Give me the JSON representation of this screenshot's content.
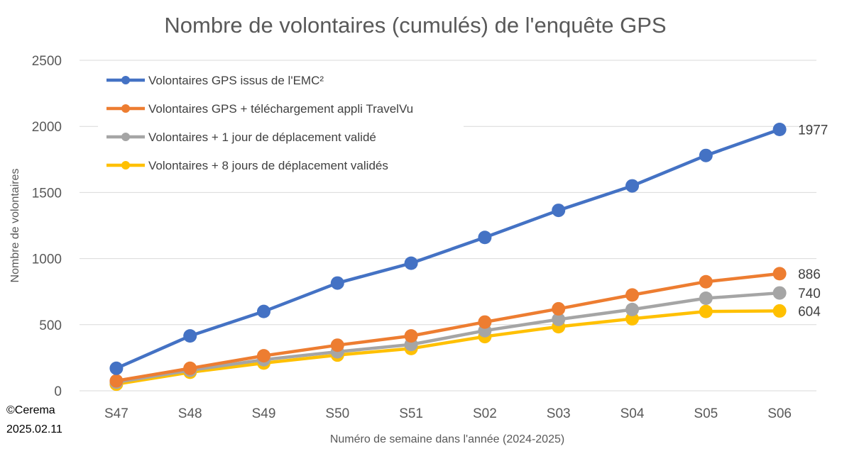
{
  "chart_data": {
    "type": "line",
    "title": "Nombre de volontaires (cumulés) de l'enquête GPS",
    "xlabel": "Numéro de semaine dans l'année (2024-2025)",
    "ylabel": "Nombre de volontaires",
    "categories": [
      "S47",
      "S48",
      "S49",
      "S50",
      "S51",
      "S02",
      "S03",
      "S04",
      "S05",
      "S06"
    ],
    "ylim": [
      0,
      2500
    ],
    "yticks": [
      0,
      500,
      1000,
      1500,
      2000,
      2500
    ],
    "grid": "horizontal",
    "legend_position": "top-left",
    "series": [
      {
        "name": "Volontaires GPS issus de l'EMC²",
        "color": "#4472C4",
        "values": [
          170,
          415,
          600,
          815,
          965,
          1160,
          1365,
          1550,
          1780,
          1977
        ],
        "end_label": "1977"
      },
      {
        "name": "Volontaires GPS + téléchargement appli TravelVu",
        "color": "#ED7D31",
        "values": [
          75,
          170,
          265,
          345,
          415,
          520,
          620,
          725,
          825,
          886
        ],
        "end_label": "886"
      },
      {
        "name": "Volontaires + 1 jour de déplacement validé",
        "color": "#A5A5A5",
        "values": [
          65,
          155,
          235,
          295,
          350,
          455,
          540,
          615,
          700,
          740
        ],
        "end_label": "740"
      },
      {
        "name": "Volontaires + 8 jours de déplacement validés",
        "color": "#FFC000",
        "values": [
          50,
          140,
          210,
          270,
          320,
          410,
          485,
          545,
          600,
          604
        ],
        "end_label": "604"
      }
    ]
  },
  "credit": {
    "line1": "©Cerema",
    "line2": "2025.02.11"
  }
}
